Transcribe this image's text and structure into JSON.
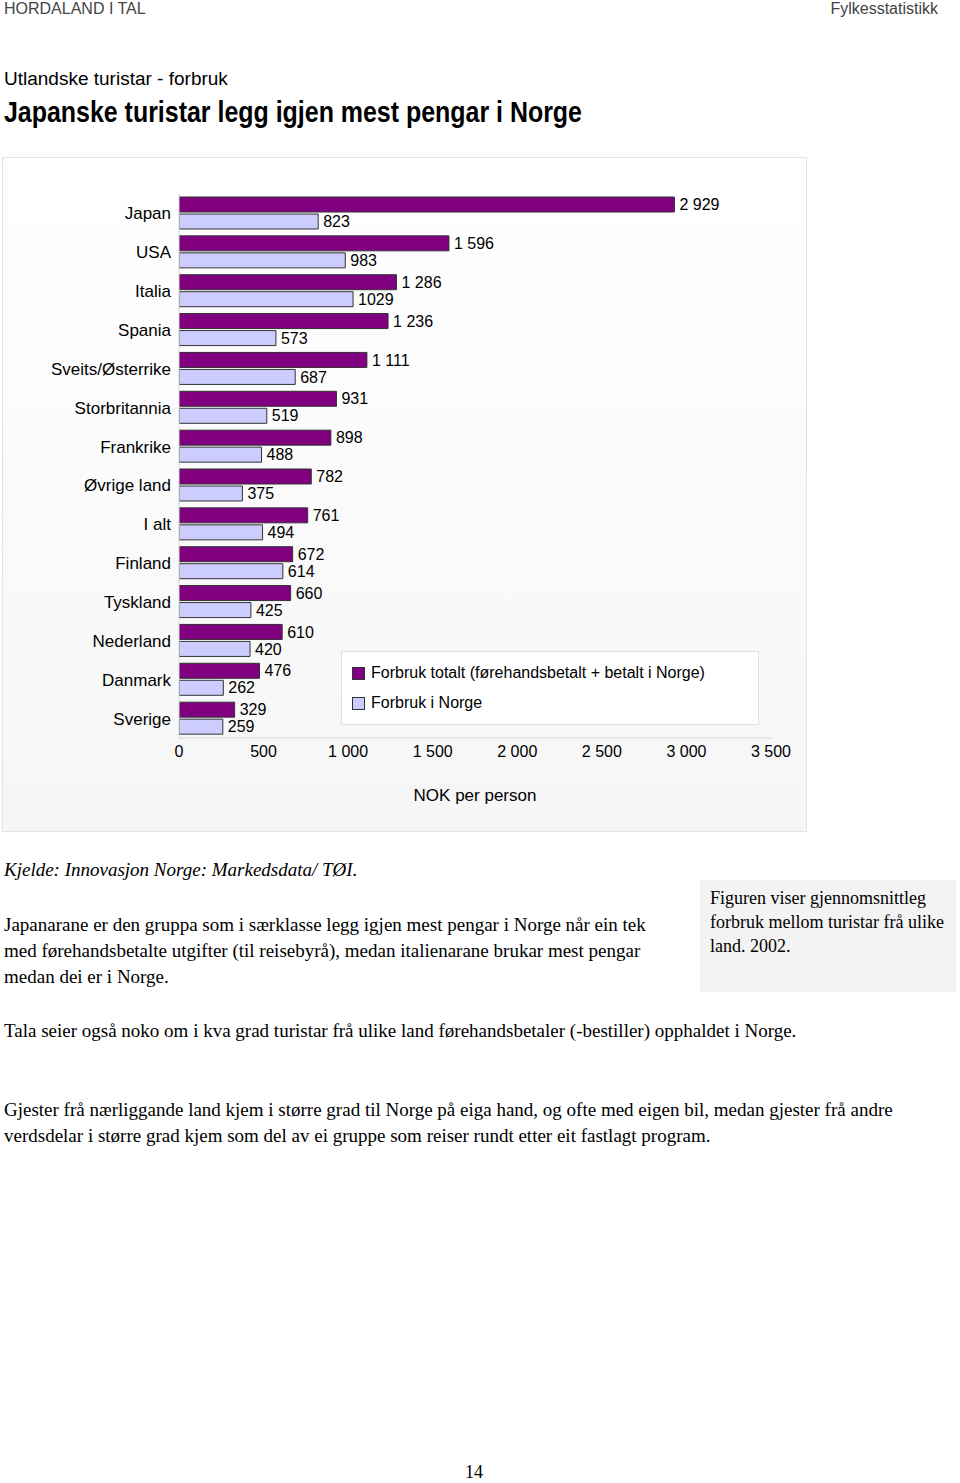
{
  "header": {
    "left": "HORDALAND I TAL",
    "right": "Fylkesstatistikk"
  },
  "subtitle": "Utlandske turistar - forbruk",
  "title": "Japanske turistar legg igjen mest pengar i Norge",
  "chart_data": {
    "type": "bar",
    "orientation": "horizontal",
    "categories": [
      "Japan",
      "USA",
      "Italia",
      "Spania",
      "Sveits/Østerrike",
      "Storbritannia",
      "Frankrike",
      "Øvrige land",
      "I alt",
      "Finland",
      "Tyskland",
      "Nederland",
      "Danmark",
      "Sverige"
    ],
    "series": [
      {
        "name": "Forbruk totalt (førehandsbetalt + betalt i Norge)",
        "color": "#800080",
        "values": [
          2929,
          1596,
          1286,
          1236,
          1111,
          931,
          898,
          782,
          761,
          672,
          660,
          610,
          476,
          329
        ],
        "value_labels": [
          "2 929",
          "1 596",
          "1 286",
          "1 236",
          "1 111",
          "931",
          "898",
          "782",
          "761",
          "672",
          "660",
          "610",
          "476",
          "329"
        ]
      },
      {
        "name": "Forbruk i Norge",
        "color": "#ccccff",
        "values": [
          823,
          983,
          1029,
          573,
          687,
          519,
          488,
          375,
          494,
          614,
          425,
          420,
          262,
          259
        ]
      }
    ],
    "xlabel": "NOK per person",
    "xlim": [
      0,
      3500
    ],
    "xticks": [
      0,
      500,
      {
        "value": 1000,
        "label": "1 000"
      },
      {
        "value": 1500,
        "label": "1 500"
      },
      {
        "value": 2000,
        "label": "2 000"
      },
      {
        "value": 2500,
        "label": "2 500"
      },
      {
        "value": 3000,
        "label": "3 000"
      },
      {
        "value": 3500,
        "label": "3 500"
      }
    ],
    "data_labels": true,
    "legend": "lower right",
    "grid": false
  },
  "source": "Kjelde: Innovasjon Norge: Markedsdata/ TØI.",
  "paragraphs": [
    "Japanarane er den gruppa som i særklasse legg igjen mest pengar i Norge når ein tek med førehandsbetalte utgifter (til reisebyrå), medan italienarane brukar mest pengar medan dei er i Norge.",
    "Tala seier også noko om i kva grad turistar frå ulike land førehandsbetaler (-bestiller) opphaldet i Norge.",
    "Gjester frå nærliggande land kjem i større grad til Norge på eiga hand, og ofte med eigen bil, medan gjester frå andre verdsdelar i større grad kjem som del av ei gruppe som reiser rundt etter eit fastlagt program."
  ],
  "sidebar": "Figuren viser gjennomsnittleg forbruk mellom turistar frå ulike land. 2002.",
  "page_number": "14"
}
